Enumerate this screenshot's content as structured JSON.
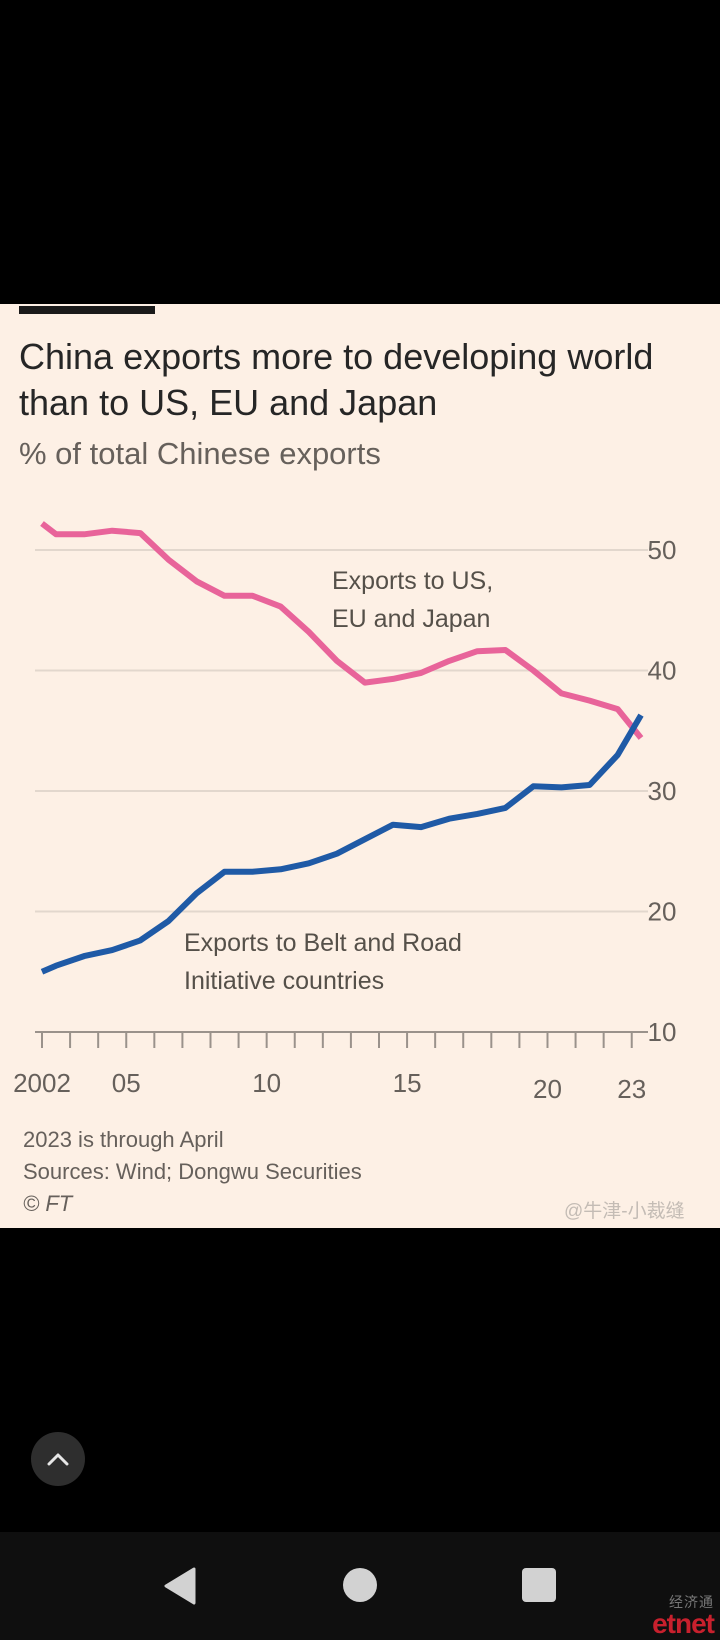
{
  "chart_data": {
    "type": "line",
    "title": "China exports more to developing world than to US, EU and Japan",
    "subtitle": "% of total Chinese exports",
    "ylim": [
      10,
      52
    ],
    "yticks": [
      10,
      20,
      30,
      40,
      50
    ],
    "xlim": [
      2002,
      2023.33
    ],
    "xticks": [
      {
        "value": 2002,
        "label": "2002"
      },
      {
        "value": 2005,
        "label": "05"
      },
      {
        "value": 2010,
        "label": "10"
      },
      {
        "value": 2015,
        "label": "15"
      },
      {
        "value": 2020,
        "label": "20"
      },
      {
        "value": 2023,
        "label": "23"
      }
    ],
    "grid": true,
    "series": [
      {
        "name": "Exports to US, EU and Japan",
        "color": "#e8649a",
        "x": [
          2002,
          2002.5,
          2003.5,
          2004.5,
          2005.5,
          2006.5,
          2007.5,
          2008.5,
          2009.5,
          2010.5,
          2011.5,
          2012.5,
          2013.5,
          2014.5,
          2015.5,
          2016.5,
          2017.5,
          2018.5,
          2019.5,
          2020.5,
          2021.5,
          2022.5,
          2023.33
        ],
        "values": [
          52.2,
          51.3,
          51.3,
          51.6,
          51.4,
          49.2,
          47.4,
          46.2,
          46.2,
          45.3,
          43.2,
          40.8,
          39.0,
          39.3,
          39.8,
          40.8,
          41.6,
          41.7,
          40.0,
          38.1,
          37.5,
          36.8,
          34.4
        ]
      },
      {
        "name": "Exports to Belt and Road Initiative countries",
        "color": "#1f5aa6",
        "x": [
          2002,
          2002.5,
          2003.5,
          2004.5,
          2005.5,
          2006.5,
          2007.5,
          2008.5,
          2009.5,
          2010.5,
          2011.5,
          2012.5,
          2013.5,
          2014.5,
          2015.5,
          2016.5,
          2017.5,
          2018.5,
          2019.5,
          2020.5,
          2021.5,
          2022.5,
          2023.33
        ],
        "values": [
          15.0,
          15.5,
          16.3,
          16.8,
          17.6,
          19.2,
          21.5,
          23.3,
          23.3,
          23.5,
          24.0,
          24.8,
          26.0,
          27.2,
          27.0,
          27.7,
          28.1,
          28.6,
          30.4,
          30.3,
          30.5,
          33.0,
          36.3
        ]
      }
    ],
    "annotations": {
      "developed": [
        "Exports to US,",
        "EU and Japan"
      ],
      "bri": [
        "Exports to Belt and Road",
        "Initiative countries"
      ]
    }
  },
  "footer": {
    "note": "2023 is through April",
    "sources": "Sources: Wind; Dongwu Securities",
    "copyright": "© FT"
  },
  "watermark": "@牛津-小裁缝",
  "nav": {
    "logo_small": "经济通",
    "logo_big": "etnet"
  },
  "icons": {
    "scroll_top": "chevron-up-icon",
    "back": "back-triangle-icon",
    "home": "home-circle-icon",
    "recents": "recents-square-icon"
  }
}
